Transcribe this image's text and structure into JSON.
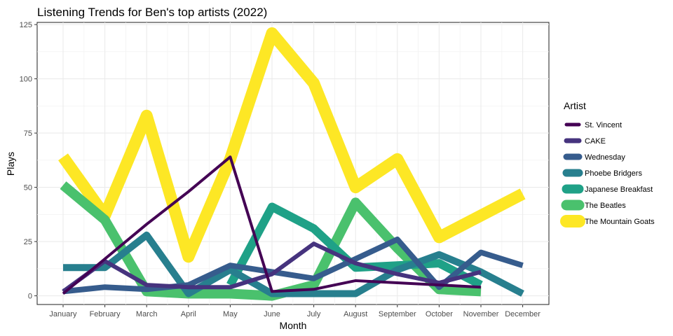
{
  "chart_data": {
    "type": "line",
    "title": "Listening Trends for Ben's top artists (2022)",
    "xlabel": "Month",
    "ylabel": "Plays",
    "categories": [
      "January",
      "February",
      "March",
      "April",
      "May",
      "June",
      "July",
      "August",
      "September",
      "October",
      "November",
      "December"
    ],
    "ylim": [
      -4,
      126
    ],
    "yticks": [
      0,
      25,
      50,
      75,
      100,
      125
    ],
    "grid": true,
    "legend": {
      "title": "Artist",
      "placement": "right"
    },
    "series": [
      {
        "name": "St. Vincent",
        "color": "#440154",
        "width_rank": 1,
        "values": [
          1,
          17,
          33,
          48,
          64,
          2,
          3,
          7,
          6,
          5,
          4,
          null
        ]
      },
      {
        "name": "CAKE",
        "color": "#46337E",
        "width_rank": 2,
        "values": [
          2,
          16,
          5,
          4,
          4,
          10,
          24,
          15,
          10,
          6,
          11,
          null
        ]
      },
      {
        "name": "Wednesday",
        "color": "#365C8D",
        "width_rank": 3,
        "values": [
          2,
          4,
          3,
          5,
          14,
          11,
          8,
          17,
          26,
          4,
          20,
          14
        ]
      },
      {
        "name": "Phoebe Bridgers",
        "color": "#277F8E",
        "width_rank": 4,
        "values": [
          13,
          13,
          28,
          1,
          12,
          1,
          1,
          1,
          12,
          19,
          11,
          1
        ]
      },
      {
        "name": "Japanese Breakfast",
        "color": "#1FA187",
        "width_rank": 5,
        "values": [
          null,
          null,
          null,
          null,
          5,
          41,
          31,
          13,
          14,
          15,
          5,
          null
        ]
      },
      {
        "name": "The Beatles",
        "color": "#4AC16D",
        "width_rank": 6,
        "values": [
          51,
          35,
          2,
          1,
          1,
          0,
          5,
          43,
          22,
          3,
          2,
          null
        ]
      },
      {
        "name": "The Mountain Goats",
        "color": "#FDE725",
        "width_rank": 7,
        "values": [
          64,
          37,
          83,
          18,
          63,
          121,
          98,
          50,
          63,
          27,
          37,
          47
        ]
      }
    ]
  }
}
